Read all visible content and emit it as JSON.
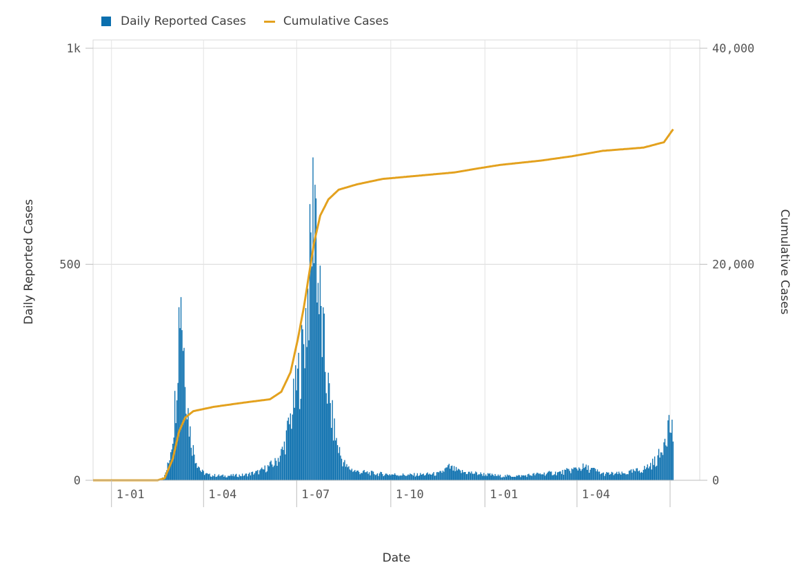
{
  "chart_data": {
    "type": "bar+line",
    "legend": [
      {
        "name": "Daily Reported Cases",
        "kind": "bar",
        "color": "#0b6fae"
      },
      {
        "name": "Cumulative Cases",
        "kind": "line",
        "color": "#e3a11e"
      }
    ],
    "xlabel": "Date",
    "ylabel_left": "Daily Reported Cases",
    "ylabel_right": "Cumulative Cases",
    "y_left": {
      "range": [
        0,
        1000
      ],
      "ticks": [
        0,
        500,
        1000
      ],
      "tick_labels": [
        "0",
        "500",
        "1k"
      ]
    },
    "y_right": {
      "range": [
        0,
        40000
      ],
      "ticks": [
        0,
        20000,
        40000
      ],
      "tick_labels": [
        "0",
        "20,000",
        "40,000"
      ]
    },
    "x_ticks": [
      {
        "day": 0,
        "label": "1-01"
      },
      {
        "day": 90,
        "label": "1-04"
      },
      {
        "day": 181,
        "label": "1-07"
      },
      {
        "day": 273,
        "label": "1-10"
      },
      {
        "day": 365,
        "label": "1-01"
      },
      {
        "day": 455,
        "label": "1-04"
      },
      {
        "day": 546,
        "label": ""
      }
    ],
    "x_range_days": [
      -18,
      575
    ],
    "daily_keyframes": [
      [
        -18,
        0
      ],
      [
        45,
        0
      ],
      [
        48,
        5
      ],
      [
        52,
        10
      ],
      [
        56,
        40
      ],
      [
        60,
        110
      ],
      [
        63,
        200
      ],
      [
        65,
        320
      ],
      [
        67,
        430
      ],
      [
        68,
        460
      ],
      [
        70,
        330
      ],
      [
        72,
        280
      ],
      [
        74,
        180
      ],
      [
        77,
        110
      ],
      [
        80,
        70
      ],
      [
        84,
        40
      ],
      [
        88,
        20
      ],
      [
        95,
        12
      ],
      [
        110,
        10
      ],
      [
        130,
        12
      ],
      [
        145,
        20
      ],
      [
        160,
        40
      ],
      [
        168,
        70
      ],
      [
        174,
        130
      ],
      [
        180,
        200
      ],
      [
        186,
        280
      ],
      [
        190,
        370
      ],
      [
        194,
        480
      ],
      [
        197,
        620
      ],
      [
        199,
        700
      ],
      [
        202,
        450
      ],
      [
        206,
        340
      ],
      [
        210,
        240
      ],
      [
        215,
        150
      ],
      [
        220,
        90
      ],
      [
        225,
        50
      ],
      [
        230,
        30
      ],
      [
        240,
        20
      ],
      [
        260,
        15
      ],
      [
        290,
        12
      ],
      [
        320,
        15
      ],
      [
        330,
        30
      ],
      [
        340,
        20
      ],
      [
        360,
        15
      ],
      [
        380,
        10
      ],
      [
        400,
        10
      ],
      [
        420,
        15
      ],
      [
        440,
        18
      ],
      [
        460,
        30
      ],
      [
        470,
        25
      ],
      [
        480,
        15
      ],
      [
        500,
        15
      ],
      [
        520,
        25
      ],
      [
        530,
        40
      ],
      [
        537,
        60
      ],
      [
        541,
        110
      ],
      [
        545,
        130
      ],
      [
        549,
        110
      ]
    ],
    "cumulative_keyframes": [
      [
        -18,
        0
      ],
      [
        45,
        0
      ],
      [
        52,
        200
      ],
      [
        60,
        2000
      ],
      [
        66,
        4500
      ],
      [
        72,
        5800
      ],
      [
        80,
        6400
      ],
      [
        100,
        6800
      ],
      [
        130,
        7200
      ],
      [
        155,
        7500
      ],
      [
        166,
        8200
      ],
      [
        175,
        10000
      ],
      [
        182,
        13000
      ],
      [
        188,
        16000
      ],
      [
        193,
        19000
      ],
      [
        198,
        22000
      ],
      [
        204,
        24500
      ],
      [
        212,
        26000
      ],
      [
        222,
        26900
      ],
      [
        240,
        27400
      ],
      [
        265,
        27900
      ],
      [
        300,
        28200
      ],
      [
        335,
        28500
      ],
      [
        360,
        28900
      ],
      [
        380,
        29200
      ],
      [
        420,
        29600
      ],
      [
        450,
        30000
      ],
      [
        480,
        30500
      ],
      [
        520,
        30800
      ],
      [
        540,
        31300
      ],
      [
        549,
        32500
      ]
    ],
    "grid": true
  }
}
